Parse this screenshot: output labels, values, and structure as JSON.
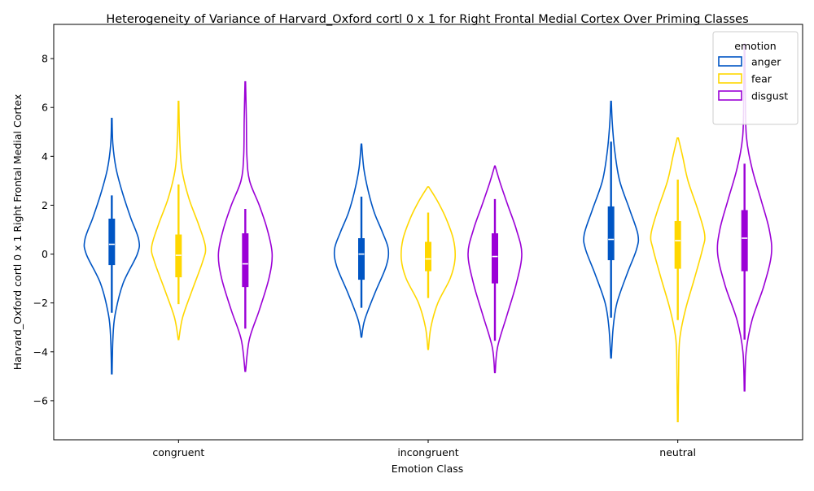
{
  "chart_data": {
    "type": "violin",
    "title": "Heterogeneity of Variance of Harvard_Oxford cortl 0 x 1 for Right Frontal Medial Cortex Over Priming Classes",
    "xlabel": "Emotion Class",
    "ylabel": "Harvard_Oxford cortl 0 x 1 Right Frontal Medial Cortex",
    "categories": [
      "congruent",
      "incongruent",
      "neutral"
    ],
    "ylim": [
      -7.6,
      9.4
    ],
    "yticks": [
      -6,
      -4,
      -2,
      0,
      2,
      4,
      6,
      8
    ],
    "grid": false,
    "legend": {
      "title": "emotion",
      "placement": "top-right",
      "entries": [
        "anger",
        "fear",
        "disgust"
      ]
    },
    "series": [
      {
        "name": "anger",
        "color": "#0055c4",
        "violins": [
          {
            "category": "congruent",
            "min": -4.9,
            "max": 5.55,
            "q1": -0.45,
            "median": 0.4,
            "q3": 1.45,
            "whisker_low": -2.4,
            "whisker_high": 2.4,
            "profile": [
              [
                -4.9,
                0.01
              ],
              [
                -3.5,
                0.04
              ],
              [
                -2.5,
                0.12
              ],
              [
                -1.2,
                0.42
              ],
              [
                0.0,
                0.95
              ],
              [
                0.6,
                1.0
              ],
              [
                1.5,
                0.7
              ],
              [
                2.5,
                0.4
              ],
              [
                3.5,
                0.16
              ],
              [
                4.5,
                0.04
              ],
              [
                5.55,
                0.01
              ]
            ]
          },
          {
            "category": "incongruent",
            "min": -3.4,
            "max": 4.5,
            "q1": -1.05,
            "median": 0.0,
            "q3": 0.65,
            "whisker_low": -2.2,
            "whisker_high": 2.35,
            "profile": [
              [
                -3.4,
                0.01
              ],
              [
                -2.7,
                0.12
              ],
              [
                -1.6,
                0.5
              ],
              [
                -0.5,
                0.92
              ],
              [
                0.2,
                1.0
              ],
              [
                0.9,
                0.78
              ],
              [
                1.7,
                0.48
              ],
              [
                2.6,
                0.25
              ],
              [
                3.5,
                0.09
              ],
              [
                4.5,
                0.01
              ]
            ]
          },
          {
            "category": "neutral",
            "min": -4.25,
            "max": 6.25,
            "q1": -0.25,
            "median": 0.6,
            "q3": 1.95,
            "whisker_low": -2.6,
            "whisker_high": 4.6,
            "profile": [
              [
                -4.25,
                0.01
              ],
              [
                -3.0,
                0.08
              ],
              [
                -2.0,
                0.22
              ],
              [
                -0.8,
                0.6
              ],
              [
                0.2,
                0.95
              ],
              [
                0.8,
                1.0
              ],
              [
                1.8,
                0.7
              ],
              [
                3.0,
                0.32
              ],
              [
                4.2,
                0.14
              ],
              [
                5.3,
                0.05
              ],
              [
                6.25,
                0.01
              ]
            ]
          }
        ]
      },
      {
        "name": "fear",
        "color": "#ffd700",
        "violins": [
          {
            "category": "congruent",
            "min": -3.5,
            "max": 6.25,
            "q1": -0.95,
            "median": -0.05,
            "q3": 0.8,
            "whisker_low": -2.05,
            "whisker_high": 2.85,
            "profile": [
              [
                -3.5,
                0.01
              ],
              [
                -2.6,
                0.15
              ],
              [
                -1.5,
                0.5
              ],
              [
                -0.3,
                0.9
              ],
              [
                0.3,
                1.0
              ],
              [
                1.2,
                0.75
              ],
              [
                2.3,
                0.38
              ],
              [
                3.5,
                0.12
              ],
              [
                4.8,
                0.04
              ],
              [
                6.25,
                0.01
              ]
            ]
          },
          {
            "category": "incongruent",
            "min": -3.9,
            "max": 2.75,
            "q1": -0.7,
            "median": -0.2,
            "q3": 0.5,
            "whisker_low": -1.8,
            "whisker_high": 1.7,
            "profile": [
              [
                -3.9,
                0.01
              ],
              [
                -3.0,
                0.1
              ],
              [
                -2.0,
                0.36
              ],
              [
                -1.0,
                0.82
              ],
              [
                -0.2,
                1.0
              ],
              [
                0.6,
                0.94
              ],
              [
                1.5,
                0.65
              ],
              [
                2.2,
                0.33
              ],
              [
                2.75,
                0.02
              ]
            ]
          },
          {
            "category": "neutral",
            "min": -6.85,
            "max": 4.75,
            "q1": -0.6,
            "median": 0.55,
            "q3": 1.35,
            "whisker_low": -2.7,
            "whisker_high": 3.05,
            "profile": [
              [
                -6.85,
                0.01
              ],
              [
                -5.0,
                0.03
              ],
              [
                -3.5,
                0.07
              ],
              [
                -2.3,
                0.28
              ],
              [
                -1.0,
                0.62
              ],
              [
                0.2,
                0.92
              ],
              [
                0.8,
                1.0
              ],
              [
                1.8,
                0.75
              ],
              [
                3.0,
                0.38
              ],
              [
                4.0,
                0.18
              ],
              [
                4.75,
                0.02
              ]
            ]
          }
        ]
      },
      {
        "name": "disgust",
        "color": "#9b00d6",
        "violins": [
          {
            "category": "congruent",
            "min": -4.8,
            "max": 7.05,
            "q1": -1.35,
            "median": -0.4,
            "q3": 0.85,
            "whisker_low": -3.05,
            "whisker_high": 1.85,
            "profile": [
              [
                -4.8,
                0.01
              ],
              [
                -3.5,
                0.15
              ],
              [
                -2.3,
                0.52
              ],
              [
                -1.0,
                0.88
              ],
              [
                0.0,
                1.0
              ],
              [
                1.0,
                0.82
              ],
              [
                2.0,
                0.52
              ],
              [
                3.0,
                0.16
              ],
              [
                4.0,
                0.06
              ],
              [
                5.5,
                0.04
              ],
              [
                7.05,
                0.01
              ]
            ]
          },
          {
            "category": "incongruent",
            "min": -4.85,
            "max": 3.6,
            "q1": -1.2,
            "median": -0.1,
            "q3": 0.85,
            "whisker_low": -3.55,
            "whisker_high": 2.25,
            "profile": [
              [
                -4.85,
                0.01
              ],
              [
                -3.8,
                0.1
              ],
              [
                -2.5,
                0.45
              ],
              [
                -1.2,
                0.8
              ],
              [
                0.0,
                1.0
              ],
              [
                1.0,
                0.8
              ],
              [
                2.0,
                0.48
              ],
              [
                2.9,
                0.2
              ],
              [
                3.6,
                0.01
              ]
            ]
          },
          {
            "category": "neutral",
            "min": -5.6,
            "max": 8.6,
            "q1": -0.7,
            "median": 0.65,
            "q3": 1.8,
            "whisker_low": -3.5,
            "whisker_high": 3.7,
            "profile": [
              [
                -5.6,
                0.01
              ],
              [
                -4.0,
                0.06
              ],
              [
                -2.7,
                0.28
              ],
              [
                -1.3,
                0.72
              ],
              [
                0.0,
                1.0
              ],
              [
                1.0,
                0.92
              ],
              [
                2.2,
                0.62
              ],
              [
                3.5,
                0.28
              ],
              [
                4.8,
                0.07
              ],
              [
                6.5,
                0.03
              ],
              [
                8.6,
                0.01
              ]
            ]
          }
        ]
      }
    ]
  }
}
